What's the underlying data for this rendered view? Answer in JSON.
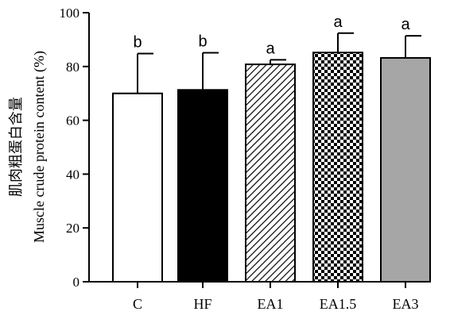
{
  "chart_data": {
    "type": "bar",
    "title": "",
    "xlabel": "",
    "ylabel": "Muscle crude protein content (%)",
    "ylabel_cn": "肌肉粗蛋白含量",
    "ylim": [
      0,
      100
    ],
    "yticks": [
      0,
      20,
      40,
      60,
      80,
      100
    ],
    "categories": [
      "C",
      "HF",
      "EA1",
      "EA1.5",
      "EA3"
    ],
    "values": [
      70,
      71.3,
      80.8,
      85.2,
      83.2
    ],
    "errors": [
      14.8,
      13.8,
      1.7,
      7.2,
      8.2
    ],
    "significance": [
      "b",
      "b",
      "a",
      "a",
      "a"
    ],
    "fills": [
      "white",
      "black",
      "diagonal-hatch",
      "checkerboard",
      "gray"
    ],
    "colors": {
      "gray": "#a6a6a6",
      "axis": "#000000"
    },
    "grid": false,
    "legend": "none"
  }
}
